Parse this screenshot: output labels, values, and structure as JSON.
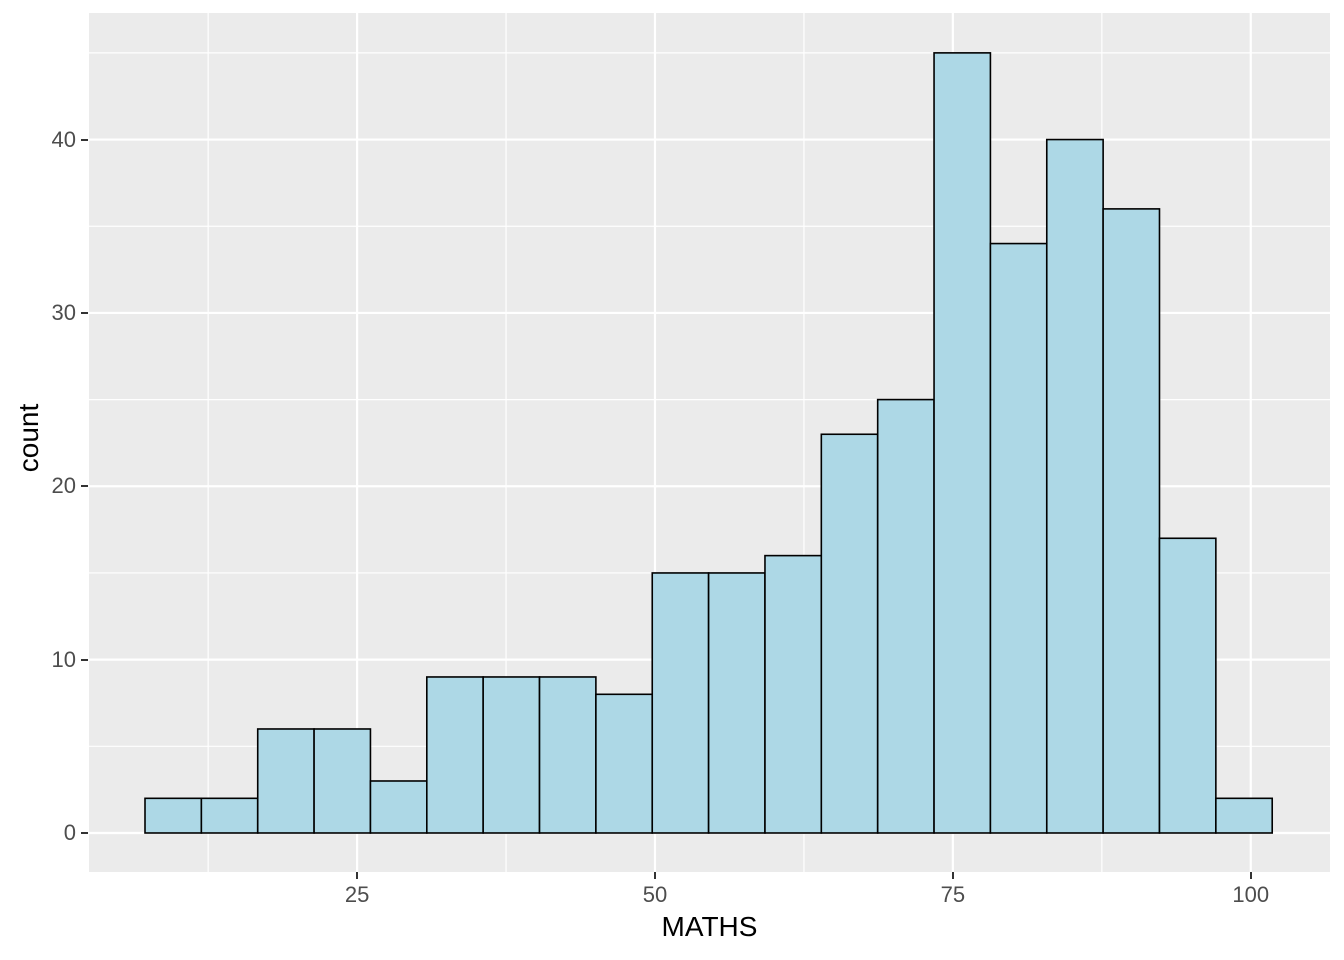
{
  "chart_data": {
    "type": "bar",
    "subtype": "histogram",
    "title": "",
    "xlabel": "MATHS",
    "ylabel": "count",
    "bin_start": 7.2,
    "bin_width": 4.73,
    "counts": [
      2,
      2,
      6,
      6,
      3,
      9,
      9,
      9,
      8,
      15,
      15,
      16,
      23,
      25,
      45,
      34,
      40,
      36,
      17,
      2
    ],
    "bin_edges": [
      7.2,
      11.9,
      16.7,
      21.4,
      26.1,
      30.9,
      35.6,
      40.3,
      45.1,
      49.8,
      54.5,
      59.3,
      64.0,
      68.7,
      73.5,
      78.2,
      82.9,
      87.7,
      92.4,
      97.1,
      101.8
    ],
    "total_count": 322,
    "x_ticks": [
      25,
      50,
      75,
      100
    ],
    "y_ticks": [
      0,
      10,
      20,
      30,
      40
    ],
    "x_minor_gridlines": [
      12.5,
      37.5,
      62.5,
      87.5
    ],
    "y_minor_gridlines": [
      5,
      15,
      25,
      35,
      45
    ],
    "xlim": [
      2.5,
      106.65
    ],
    "ylim": [
      -2.25,
      47.3
    ],
    "grid": "major and minor, white on gray panel",
    "legend": false
  },
  "style": {
    "bar_fill": "#ADD8E6",
    "bar_stroke": "#000000",
    "panel_bg": "#EBEBEB",
    "grid_color": "#FFFFFF",
    "tick_mark_color": "#333333",
    "tick_label_color": "#4D4D4D",
    "axis_title_color": "#000000",
    "figure_bg": "#FFFFFF"
  }
}
